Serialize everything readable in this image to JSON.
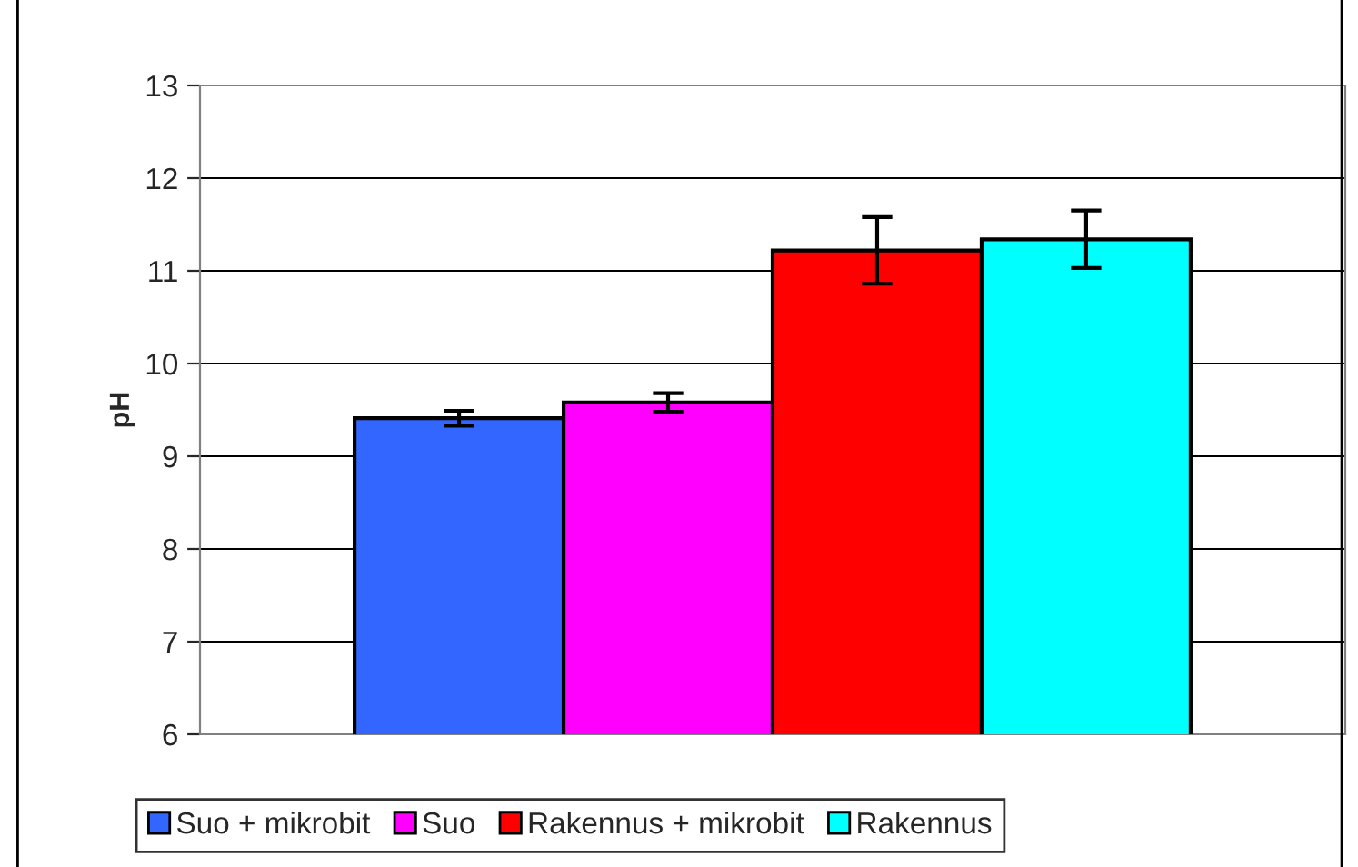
{
  "chart_data": {
    "type": "bar",
    "ylabel": "pH",
    "categories": [
      null
    ],
    "ylim": [
      6,
      13
    ],
    "yticks": [
      6,
      7,
      8,
      9,
      10,
      11,
      12,
      13
    ],
    "grid": "y",
    "legend": "bottom",
    "series": [
      {
        "name": "Suo + mikrobit",
        "color": "#3366ff",
        "values": [
          9.41
        ],
        "errors": [
          0.08
        ]
      },
      {
        "name": "Suo",
        "color": "#ff00ff",
        "values": [
          9.58
        ],
        "errors": [
          0.1
        ]
      },
      {
        "name": "Rakennus + mikrobit",
        "color": "#ff0000",
        "values": [
          11.22
        ],
        "errors": [
          0.36
        ]
      },
      {
        "name": "Rakennus",
        "color": "#00ffff",
        "values": [
          11.34
        ],
        "errors": [
          0.31
        ]
      }
    ]
  }
}
